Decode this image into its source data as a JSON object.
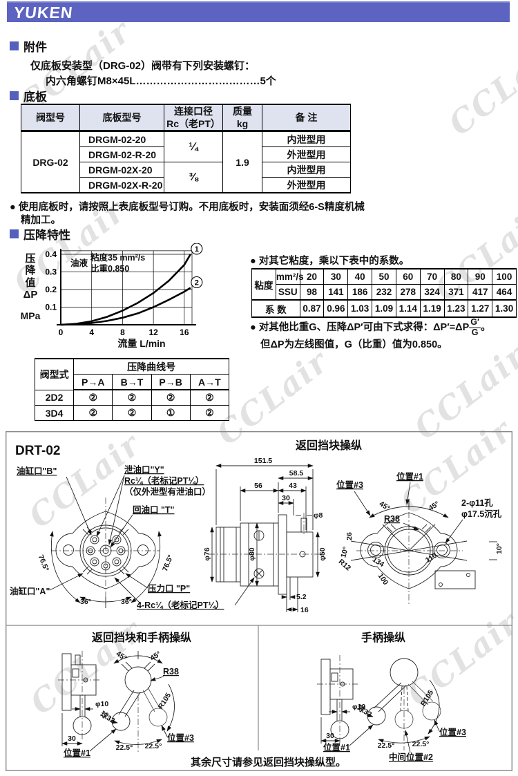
{
  "watermark": {
    "text": "CCLair"
  },
  "header": {
    "logo": "YUKEN"
  },
  "accessories": {
    "title": "附件",
    "line1": "仅底板安装型（DRG-02）阀带有下列安装螺钉：",
    "line2": "内六角螺钉M8×45L………………………………5个"
  },
  "subplate_section": {
    "title": "底板"
  },
  "subplate_table": {
    "h_valve": "阀型号",
    "h_model": "底板型号",
    "h_size1": "连接口径",
    "h_size2": "Rc（老PT）",
    "h_mass1": "质量",
    "h_mass2": "kg",
    "h_note": "备  注",
    "valve": "DRG-02",
    "mass": "1.9",
    "rows": [
      {
        "model": "DRGM-02-20",
        "size": "¼",
        "note": "内泄型用"
      },
      {
        "model": "DRGM-02-R-20",
        "note": "外泄型用"
      },
      {
        "model": "DRGM-02X-20",
        "size": "⅜",
        "note": "内泄型用"
      },
      {
        "model": "DRGM-02X-R-20",
        "note": "外泄型用"
      }
    ],
    "note_l1": "● 使用底板时，请按照上表底板型号订购。不用底板时，安装面须经6-S精度机械",
    "note_l2": "精加工。"
  },
  "pressure_section": {
    "title": "压降特性"
  },
  "chart_data": {
    "type": "line",
    "xlabel": "流量  L/min",
    "ylabel_lines": [
      "压",
      "降",
      "值",
      "ΔP"
    ],
    "ylabel_unit": "MPa",
    "annotation": {
      "prefix": "油液",
      "line1": "粘度35 mm²/s",
      "line2": "比重0.850"
    },
    "xlim": [
      0,
      17
    ],
    "ylim": [
      0,
      0.42
    ],
    "xticks": [
      0,
      4,
      8,
      12,
      16
    ],
    "yticks": [
      0.1,
      0.2,
      0.3,
      0.4
    ],
    "grid": true,
    "series": [
      {
        "name": "1",
        "x": [
          0,
          2,
          4,
          6,
          8,
          10,
          12,
          14,
          16,
          16.8
        ],
        "y": [
          0,
          0.006,
          0.02,
          0.045,
          0.08,
          0.125,
          0.18,
          0.25,
          0.34,
          0.4
        ]
      },
      {
        "name": "2",
        "x": [
          0,
          2,
          4,
          6,
          8,
          10,
          12,
          14,
          16,
          16.8
        ],
        "y": [
          0,
          0.003,
          0.01,
          0.022,
          0.04,
          0.065,
          0.1,
          0.142,
          0.188,
          0.21
        ]
      }
    ]
  },
  "viscosity": {
    "note": "● 对其它粘度，乘以下表中的系数。",
    "row_label": "粘度",
    "mm2s_label": "mm²/s",
    "ssu_label": "SSU",
    "mm2s": [
      "20",
      "30",
      "40",
      "50",
      "60",
      "70",
      "80",
      "90",
      "100"
    ],
    "ssu": [
      "98",
      "141",
      "186",
      "232",
      "278",
      "324",
      "371",
      "417",
      "464"
    ],
    "coef_label": "系  数",
    "coef": [
      "0.87",
      "0.96",
      "1.03",
      "1.09",
      "1.14",
      "1.19",
      "1.23",
      "1.27",
      "1.30"
    ]
  },
  "formula": {
    "pre": "● 对其他比重G、压降ΔP′可由下式求得：ΔP′=ΔP",
    "num": "G′",
    "den": "G",
    "end": "。",
    "line2": "但ΔP为左线图值，G（比重）值为0.850。"
  },
  "curve_table": {
    "col0": "阀型式",
    "group": "压降曲线号",
    "cols": [
      "P→A",
      "B→T",
      "P→B",
      "A→T"
    ],
    "rows": [
      {
        "model": "2D2",
        "values": [
          "②",
          "②",
          "②",
          "②"
        ]
      },
      {
        "model": "3D4",
        "values": [
          "②",
          "②",
          "①",
          "②"
        ]
      }
    ]
  },
  "drawing": {
    "model": "DRT-02",
    "title": "返回挡块操纵",
    "footnote": "其余尺寸请参见返回挡块操纵型。"
  },
  "d_front": {
    "b": "油缸口\"B\"",
    "y1": "泄油口\"Y\"",
    "y2": "Rc¼（老标记PT¼）",
    "y3": "（仅外泄型有泄油口）",
    "t": "回油口 \"T\"",
    "a": "油缸口\"A\"",
    "p": "压力口 \"P\"",
    "rc": "4-Rc¼（老标记PT¼）",
    "a765": "76.5°",
    "a36": "36°"
  },
  "d_side": {
    "d1515": "151.5",
    "d585": "58.5",
    "d56": "56",
    "d43": "43",
    "d30": "30",
    "d8": "φ8",
    "d76": "φ76",
    "d80": "φ80",
    "d50": "φ50",
    "d52": "5.2",
    "d16": "16"
  },
  "d_rear": {
    "pos3": "位置#3",
    "pos1": "位置#1",
    "a45": "45°",
    "r38": "R38",
    "holes1": "2-φ11孔",
    "holes2": "φ17.5沉孔",
    "d26": "26",
    "a10": "10°",
    "r12": "R12",
    "d134": "134",
    "d110": "110",
    "d100": "100"
  },
  "d_bl": {
    "title": "返回挡块和手柄操纵",
    "a45": "45°",
    "r38": "R38",
    "r105": "R105",
    "d10": "φ10",
    "ball": "球32",
    "d30": "30",
    "pos1": "位置#1",
    "pos3": "位置#3",
    "a225": "22.5°"
  },
  "d_br": {
    "title": "手柄操纵",
    "r105": "R105",
    "d10": "φ10",
    "ball": "球32",
    "d30": "30",
    "pos1": "位置#1",
    "pos2": "中间位置#2",
    "pos3": "位置#3",
    "a225": "22.5°"
  }
}
